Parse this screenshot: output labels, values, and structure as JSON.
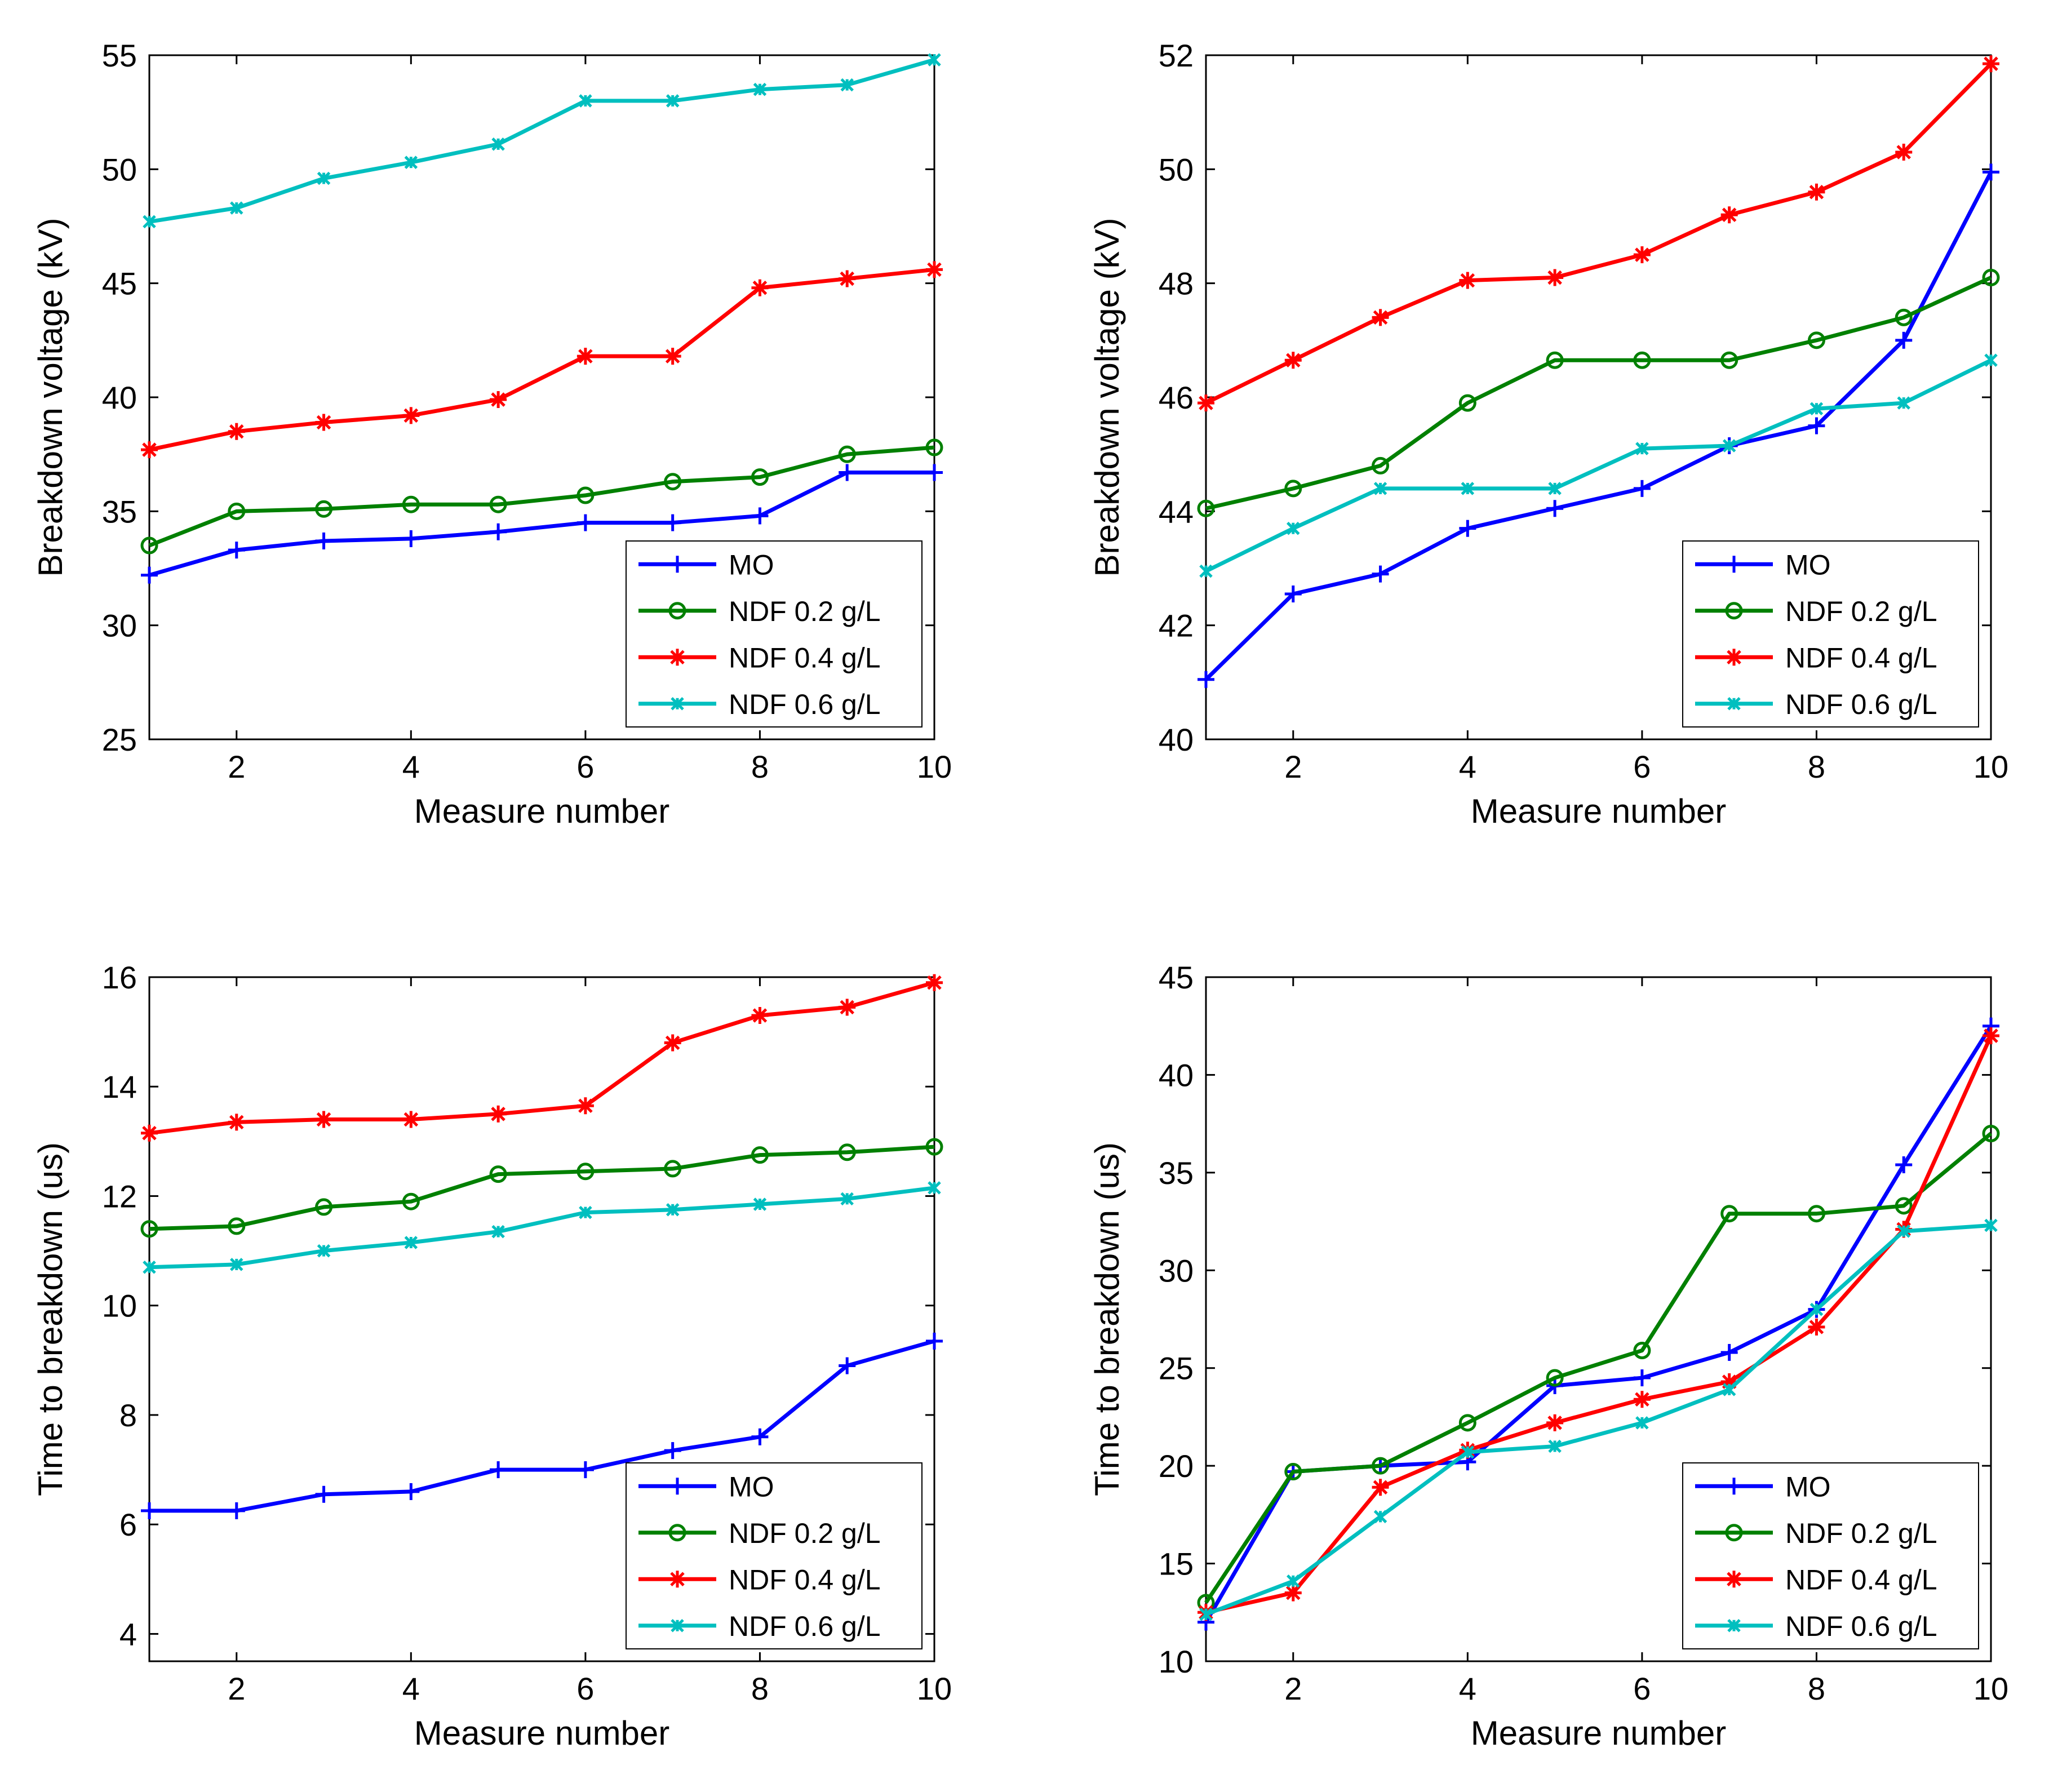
{
  "chart_data": [
    {
      "type": "line",
      "xlabel": "Measure number",
      "ylabel": "Breakdown voltage (kV)",
      "xlim": [
        1,
        10
      ],
      "ylim": [
        25,
        55
      ],
      "xticks": [
        2,
        4,
        6,
        8,
        10
      ],
      "yticks": [
        25,
        30,
        35,
        40,
        45,
        50,
        55
      ],
      "grid": false,
      "legend_position": "bottom-right",
      "x": [
        1,
        2,
        3,
        4,
        5,
        6,
        7,
        8,
        9,
        10
      ],
      "series": [
        {
          "name": "MO",
          "color": "#0000ff",
          "marker": "plus",
          "values": [
            32.2,
            33.3,
            33.7,
            33.8,
            34.1,
            34.5,
            34.5,
            34.8,
            36.7,
            36.7
          ]
        },
        {
          "name": "NDF 0.2 g/L",
          "color": "#008000",
          "marker": "circle",
          "values": [
            33.5,
            35.0,
            35.1,
            35.3,
            35.3,
            35.7,
            36.3,
            36.5,
            37.5,
            37.8
          ]
        },
        {
          "name": "NDF 0.4 g/L",
          "color": "#ff0000",
          "marker": "star",
          "values": [
            37.7,
            38.5,
            38.9,
            39.2,
            39.9,
            41.8,
            41.8,
            44.8,
            45.2,
            45.6
          ]
        },
        {
          "name": "NDF 0.6 g/L",
          "color": "#00bfbf",
          "marker": "asterisk",
          "values": [
            47.7,
            48.3,
            49.6,
            50.3,
            51.1,
            53.0,
            53.0,
            53.5,
            53.7,
            54.8
          ]
        }
      ]
    },
    {
      "type": "line",
      "xlabel": "Measure number",
      "ylabel": "Breakdown voltage (kV)",
      "xlim": [
        1,
        10
      ],
      "ylim": [
        40,
        52
      ],
      "xticks": [
        2,
        4,
        6,
        8,
        10
      ],
      "yticks": [
        40,
        42,
        44,
        46,
        48,
        50,
        52
      ],
      "grid": false,
      "legend_position": "bottom-right",
      "x": [
        1,
        2,
        3,
        4,
        5,
        6,
        7,
        8,
        9,
        10
      ],
      "series": [
        {
          "name": "MO",
          "color": "#0000ff",
          "marker": "plus",
          "values": [
            41.05,
            42.55,
            42.9,
            43.7,
            44.05,
            44.4,
            45.15,
            45.5,
            47.0,
            49.95
          ]
        },
        {
          "name": "NDF 0.2 g/L",
          "color": "#008000",
          "marker": "circle",
          "values": [
            44.05,
            44.4,
            44.8,
            45.9,
            46.65,
            46.65,
            46.65,
            47.0,
            47.4,
            48.1
          ]
        },
        {
          "name": "NDF 0.4 g/L",
          "color": "#ff0000",
          "marker": "star",
          "values": [
            45.9,
            46.65,
            47.4,
            48.05,
            48.1,
            48.5,
            49.2,
            49.6,
            50.3,
            51.85
          ]
        },
        {
          "name": "NDF 0.6 g/L",
          "color": "#00bfbf",
          "marker": "asterisk",
          "values": [
            42.95,
            43.7,
            44.4,
            44.4,
            44.4,
            45.1,
            45.15,
            45.8,
            45.9,
            46.65
          ]
        }
      ]
    },
    {
      "type": "line",
      "xlabel": "Measure number",
      "ylabel": "Time to breakdown (us)",
      "xlim": [
        1,
        10
      ],
      "ylim": [
        3.5,
        16
      ],
      "xticks": [
        2,
        4,
        6,
        8,
        10
      ],
      "yticks": [
        4,
        6,
        8,
        10,
        12,
        14,
        16
      ],
      "grid": false,
      "legend_position": "bottom-right",
      "x": [
        1,
        2,
        3,
        4,
        5,
        6,
        7,
        8,
        9,
        10
      ],
      "series": [
        {
          "name": "MO",
          "color": "#0000ff",
          "marker": "plus",
          "values": [
            6.25,
            6.25,
            6.55,
            6.6,
            7.0,
            7.0,
            7.35,
            7.6,
            8.9,
            9.35
          ]
        },
        {
          "name": "NDF 0.2 g/L",
          "color": "#008000",
          "marker": "circle",
          "values": [
            11.4,
            11.45,
            11.8,
            11.9,
            12.4,
            12.45,
            12.5,
            12.75,
            12.8,
            12.9
          ]
        },
        {
          "name": "NDF 0.4 g/L",
          "color": "#ff0000",
          "marker": "star",
          "values": [
            13.15,
            13.35,
            13.4,
            13.4,
            13.5,
            13.65,
            14.8,
            15.3,
            15.45,
            15.9
          ]
        },
        {
          "name": "NDF 0.6 g/L",
          "color": "#00bfbf",
          "marker": "asterisk",
          "values": [
            10.7,
            10.75,
            11.0,
            11.15,
            11.35,
            11.7,
            11.75,
            11.85,
            11.95,
            12.15
          ]
        }
      ]
    },
    {
      "type": "line",
      "xlabel": "Measure number",
      "ylabel": "Time to breakdown (us)",
      "xlim": [
        1,
        10
      ],
      "ylim": [
        10,
        45
      ],
      "xticks": [
        2,
        4,
        6,
        8,
        10
      ],
      "yticks": [
        10,
        15,
        20,
        25,
        30,
        35,
        40,
        45
      ],
      "grid": false,
      "legend_position": "bottom-right",
      "x": [
        1,
        2,
        3,
        4,
        5,
        6,
        7,
        8,
        9,
        10
      ],
      "series": [
        {
          "name": "MO",
          "color": "#0000ff",
          "marker": "plus",
          "values": [
            12.0,
            19.7,
            20.0,
            20.2,
            24.1,
            24.5,
            25.8,
            28.0,
            35.4,
            42.5
          ]
        },
        {
          "name": "NDF 0.2 g/L",
          "color": "#008000",
          "marker": "circle",
          "values": [
            13.0,
            19.7,
            20.0,
            22.2,
            24.5,
            25.9,
            32.9,
            32.9,
            33.3,
            37.0
          ]
        },
        {
          "name": "NDF 0.4 g/L",
          "color": "#ff0000",
          "marker": "star",
          "values": [
            12.5,
            13.5,
            18.9,
            20.8,
            22.2,
            23.4,
            24.3,
            27.1,
            32.1,
            42.0
          ]
        },
        {
          "name": "NDF 0.6 g/L",
          "color": "#00bfbf",
          "marker": "asterisk",
          "values": [
            12.4,
            14.1,
            17.4,
            20.7,
            21.0,
            22.2,
            23.9,
            28.0,
            32.0,
            32.3
          ]
        }
      ]
    }
  ]
}
